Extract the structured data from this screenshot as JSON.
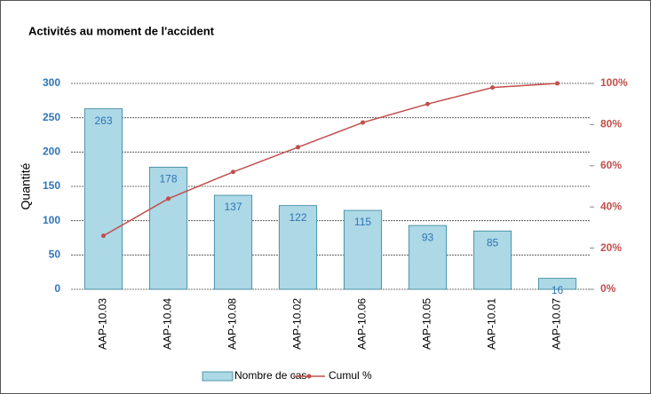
{
  "chart_data": {
    "type": "pareto",
    "title": "Activités au moment de l'accident",
    "y_label": "Quantité",
    "categories": [
      "AAP-10.03",
      "AAP-10.04",
      "AAP-10.08",
      "AAP-10.02",
      "AAP-10.06",
      "AAP-10.05",
      "AAP-10.01",
      "AAP-10.07"
    ],
    "series": [
      {
        "name": "Nombre de cas",
        "color": "#add8e6",
        "values": [
          263,
          178,
          137,
          122,
          115,
          93,
          85,
          16
        ]
      },
      {
        "name": "Cumul %",
        "color": "#c0504d",
        "axis": "y2",
        "values": [
          26,
          44,
          57,
          69,
          81,
          90,
          98,
          100
        ]
      }
    ],
    "ylim": [
      0,
      300
    ],
    "yticks": [
      0,
      50,
      100,
      150,
      200,
      250,
      300
    ],
    "y2lim": [
      0,
      100
    ],
    "y2ticks": [
      {
        "value": 0,
        "label": "0%"
      },
      {
        "value": 20,
        "label": "20%"
      },
      {
        "value": 40,
        "label": "40%"
      },
      {
        "value": 60,
        "label": "60%"
      },
      {
        "value": 80,
        "label": "80%"
      },
      {
        "value": 100,
        "label": "100%"
      }
    ],
    "grid": true,
    "legend": "bottom"
  }
}
